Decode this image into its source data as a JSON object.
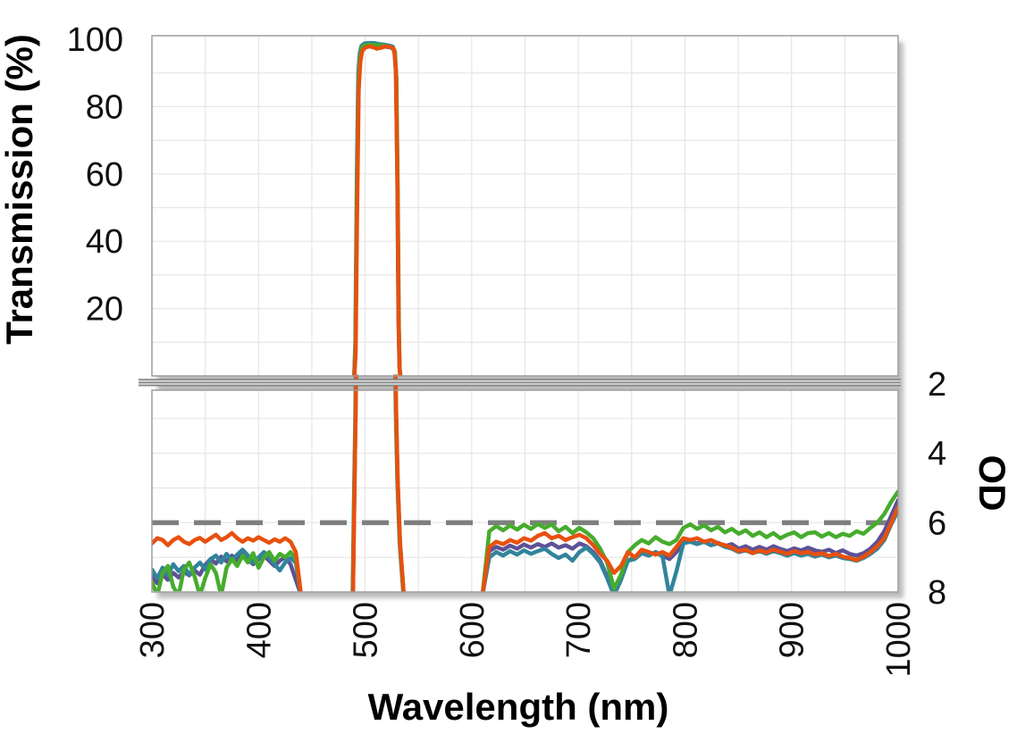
{
  "figure": {
    "background": "#ffffff",
    "grid_color": "#e6e6e6",
    "border_color": "#9d9d9d",
    "break_band": {
      "fill": "#dcdcdc",
      "line_color": "#858585"
    },
    "x_axis": {
      "title": "Wavelength (nm)",
      "min": 300,
      "max": 1000,
      "tick_values": [
        300,
        400,
        500,
        600,
        700,
        800,
        900,
        1000
      ],
      "tick_labels": [
        "300",
        "400",
        "500",
        "600",
        "700",
        "800",
        "900",
        "1000"
      ],
      "grid_step_nm": 50
    },
    "y_left_axis": {
      "title": "Transmission (%)",
      "min": 0,
      "max": 100,
      "tick_values": [
        100,
        80,
        60,
        40,
        20
      ],
      "tick_labels": [
        "100",
        "80",
        "60",
        "40",
        "20"
      ],
      "grid_step": 10
    },
    "y_right_axis": {
      "title": "OD",
      "min": 2,
      "max": 8,
      "inverted": true,
      "tick_values": [
        2,
        4,
        6,
        8
      ],
      "tick_labels": [
        "2",
        "4",
        "6",
        "8"
      ],
      "grid_step": 1
    },
    "reference_line": {
      "od": 6,
      "style": "dashed",
      "color": "#7f7f7f"
    }
  },
  "chart_data": {
    "type": "line",
    "title": "",
    "description": "Bandpass optical filter spectra for four samples: top panel transmission (%) with ~98% passband at ~493-532 nm; bottom panel blocking optical density (OD 2-8, inverted) with OD ~6-8 outside the passband and a dashed OD 6 reference line.",
    "x_unit": "nm",
    "x_range": [
      300,
      1000
    ],
    "transmission_range": [
      0,
      100
    ],
    "od_range": [
      2,
      8
    ],
    "grid": true,
    "legend": "none",
    "series": [
      {
        "id": "purple",
        "name": "Filter trace (purple)",
        "color": "#5E5196",
        "transmission_peak": [
          [
            489.8,
            0
          ],
          [
            490.9,
            8
          ],
          [
            492.3,
            52
          ],
          [
            493.8,
            86
          ],
          [
            495.3,
            94.5
          ],
          [
            496.9,
            97.2
          ],
          [
            499.4,
            98
          ],
          [
            503.5,
            98.2
          ],
          [
            508.5,
            98.1
          ],
          [
            513.5,
            98
          ],
          [
            518.5,
            97.8
          ],
          [
            523.5,
            97.6
          ],
          [
            526.2,
            97.2
          ],
          [
            527.8,
            96
          ],
          [
            529.2,
            89
          ],
          [
            530.4,
            57
          ],
          [
            531.5,
            16
          ],
          [
            532.3,
            2.5
          ],
          [
            533,
            0
          ]
        ],
        "od_segments": [
          {
            "x0": 300,
            "dx": 5,
            "od": [
              7.55,
              7.75,
              7.5,
              7.65,
              7.45,
              7.58,
              7.42,
              7.52,
              7.38,
              7.5,
              7.22,
              7.05,
              7.18,
              6.98,
              7.12,
              6.95,
              7.08,
              6.92,
              7.05,
              7.2,
              7.05,
              6.95,
              7.1,
              7.25,
              7.1,
              7.0,
              7.2,
              7.65,
              8.1
            ]
          },
          {
            "points": [
              [
                488.5,
                8.15
              ],
              [
                489.7,
                5.6
              ],
              [
                490.9,
                3.2
              ],
              [
                491.7,
                1.3
              ]
            ]
          },
          {
            "points": [
              [
                528.2,
                1.3
              ],
              [
                529.2,
                3.0
              ],
              [
                530.5,
                4.8
              ],
              [
                532.7,
                6.6
              ],
              [
                536.4,
                8.15
              ]
            ]
          },
          {
            "x0": 610,
            "dx": 6.5,
            "od": [
              8.1,
              6.82,
              6.7,
              6.78,
              6.66,
              6.75,
              6.63,
              6.72,
              6.62,
              6.7,
              6.6,
              6.72,
              6.65,
              6.75,
              6.6,
              6.68,
              6.85,
              7.1,
              7.55,
              8.0,
              7.55,
              7.1,
              7.0,
              6.88,
              6.95,
              6.85,
              6.95,
              7.05,
              6.85,
              6.58,
              6.55,
              6.6,
              6.55,
              6.65,
              6.58,
              6.68,
              6.62,
              6.75,
              6.68,
              6.78,
              6.7,
              6.78,
              6.68,
              6.76,
              6.82,
              6.74,
              6.8,
              6.72,
              6.8,
              6.84,
              6.78,
              6.88,
              6.8,
              6.9,
              6.95,
              6.88,
              6.75,
              6.55,
              6.25,
              5.8,
              5.35
            ]
          }
        ]
      },
      {
        "id": "teal",
        "name": "Filter trace (teal)",
        "color": "#31849B",
        "transmission_peak": [
          [
            489.7,
            0
          ],
          [
            490.8,
            10
          ],
          [
            492.2,
            60
          ],
          [
            493.6,
            90
          ],
          [
            495,
            96
          ],
          [
            496.5,
            98
          ],
          [
            499,
            98.7
          ],
          [
            503,
            98.9
          ],
          [
            508,
            98.9
          ],
          [
            513,
            98.6
          ],
          [
            518,
            98.4
          ],
          [
            523,
            98.1
          ],
          [
            526,
            97.8
          ],
          [
            527.6,
            96.5
          ],
          [
            528.9,
            90
          ],
          [
            530.1,
            60
          ],
          [
            531.2,
            18
          ],
          [
            532.1,
            3
          ],
          [
            532.9,
            0
          ]
        ],
        "od_segments": [
          {
            "x0": 300,
            "dx": 5,
            "od": [
              7.35,
              7.6,
              7.3,
              7.5,
              7.2,
              7.4,
              7.25,
              7.5,
              7.3,
              7.15,
              7.35,
              7.05,
              6.95,
              7.15,
              6.9,
              7.1,
              6.92,
              6.78,
              6.95,
              7.15,
              7.0,
              6.85,
              7.0,
              7.2,
              7.38,
              7.15,
              7.02,
              7.15,
              8.1
            ]
          },
          {
            "points": [
              [
                488.2,
                8.15
              ],
              [
                489.4,
                5.6
              ],
              [
                490.6,
                3.2
              ],
              [
                491.4,
                1.3
              ]
            ]
          },
          {
            "points": [
              [
                527.9,
                1.3
              ],
              [
                528.9,
                3.0
              ],
              [
                530.2,
                4.8
              ],
              [
                532.4,
                6.6
              ],
              [
                536.1,
                8.15
              ]
            ]
          },
          {
            "x0": 610,
            "dx": 6.5,
            "od": [
              8.1,
              7.0,
              6.85,
              6.95,
              6.82,
              6.92,
              6.8,
              6.9,
              6.82,
              6.75,
              6.9,
              7.02,
              6.92,
              7.1,
              6.85,
              6.72,
              6.9,
              7.15,
              7.6,
              8.1,
              7.65,
              7.1,
              7.05,
              6.88,
              6.95,
              6.85,
              6.98,
              8.1,
              7.4,
              6.6,
              6.55,
              6.62,
              6.55,
              6.65,
              6.6,
              6.7,
              6.75,
              6.85,
              6.8,
              6.88,
              6.82,
              6.9,
              6.82,
              6.88,
              6.95,
              6.88,
              6.95,
              6.9,
              6.98,
              6.92,
              7.0,
              6.95,
              7.02,
              7.05,
              7.1,
              7.02,
              6.9,
              6.75,
              6.5,
              6.05,
              5.65
            ]
          }
        ]
      },
      {
        "id": "green",
        "name": "Filter trace (green)",
        "color": "#46AC2D",
        "transmission_peak": [
          [
            489.9,
            0
          ],
          [
            491,
            9
          ],
          [
            492.4,
            55
          ],
          [
            493.9,
            88
          ],
          [
            495.4,
            95
          ],
          [
            497,
            97.6
          ],
          [
            499.5,
            98.2
          ],
          [
            504,
            98.4
          ],
          [
            509,
            98.3
          ],
          [
            514,
            98.2
          ],
          [
            519,
            98
          ],
          [
            524,
            97.7
          ],
          [
            526.5,
            97.3
          ],
          [
            528,
            96.2
          ],
          [
            529.4,
            88
          ],
          [
            530.6,
            55
          ],
          [
            531.7,
            14
          ],
          [
            532.5,
            2
          ],
          [
            533.2,
            0
          ]
        ],
        "od_segments": [
          {
            "x0": 300,
            "dx": 5,
            "od": [
              7.7,
              8.1,
              7.45,
              7.25,
              7.85,
              8.1,
              7.35,
              7.15,
              7.55,
              8.1,
              7.6,
              7.2,
              7.45,
              8.1,
              7.3,
              7.05,
              7.25,
              6.95,
              7.15,
              6.88,
              7.3,
              7.0,
              6.85,
              7.1,
              6.9,
              7.0,
              6.85,
              7.05,
              8.1
            ]
          },
          {
            "points": [
              [
                488.4,
                8.15
              ],
              [
                489.6,
                5.6
              ],
              [
                490.8,
                3.2
              ],
              [
                491.6,
                1.3
              ]
            ]
          },
          {
            "points": [
              [
                528.1,
                1.3
              ],
              [
                529.1,
                3.0
              ],
              [
                530.4,
                4.8
              ],
              [
                532.6,
                6.6
              ],
              [
                536.3,
                8.15
              ]
            ]
          },
          {
            "x0": 610,
            "dx": 6.5,
            "od": [
              8.1,
              6.25,
              6.1,
              6.22,
              6.08,
              6.2,
              6.06,
              6.18,
              6.04,
              6.15,
              6.05,
              6.25,
              6.12,
              6.3,
              6.15,
              6.28,
              6.45,
              6.75,
              7.15,
              7.9,
              7.5,
              6.85,
              6.65,
              6.5,
              6.6,
              6.42,
              6.55,
              6.62,
              6.5,
              6.15,
              6.05,
              6.18,
              6.08,
              6.22,
              6.12,
              6.28,
              6.18,
              6.32,
              6.22,
              6.38,
              6.28,
              6.42,
              6.3,
              6.45,
              6.35,
              6.28,
              6.42,
              6.3,
              6.28,
              6.4,
              6.3,
              6.42,
              6.32,
              6.38,
              6.25,
              6.32,
              6.15,
              6.0,
              5.75,
              5.4,
              5.1
            ]
          }
        ]
      },
      {
        "id": "orange",
        "name": "Filter trace (orange)",
        "color": "#E8500E",
        "transmission_peak": [
          [
            490,
            0
          ],
          [
            491.1,
            7
          ],
          [
            492.5,
            48
          ],
          [
            494,
            85
          ],
          [
            495.6,
            93.5
          ],
          [
            497.3,
            96.6
          ],
          [
            500,
            97.5
          ],
          [
            504,
            97.9
          ],
          [
            508,
            97.6
          ],
          [
            511,
            97.2
          ],
          [
            514,
            97.4
          ],
          [
            518,
            97.8
          ],
          [
            522,
            97.8
          ],
          [
            525.5,
            97.5
          ],
          [
            527.3,
            96.8
          ],
          [
            528.8,
            91
          ],
          [
            530.3,
            58
          ],
          [
            531.5,
            15
          ],
          [
            532.4,
            2
          ],
          [
            533.1,
            0
          ]
        ],
        "od_segments": [
          {
            "x0": 300,
            "dx": 5,
            "od": [
              6.6,
              6.45,
              6.5,
              6.65,
              6.5,
              6.42,
              6.55,
              6.62,
              6.5,
              6.44,
              6.55,
              6.45,
              6.35,
              6.5,
              6.42,
              6.3,
              6.45,
              6.55,
              6.45,
              6.52,
              6.42,
              6.5,
              6.58,
              6.48,
              6.55,
              6.45,
              6.55,
              6.85,
              8.1
            ]
          },
          {
            "points": [
              [
                488.6,
                8.15
              ],
              [
                489.8,
                5.6
              ],
              [
                491.0,
                3.2
              ],
              [
                491.8,
                1.3
              ]
            ]
          },
          {
            "points": [
              [
                528.3,
                1.3
              ],
              [
                529.3,
                3.0
              ],
              [
                530.6,
                4.8
              ],
              [
                532.8,
                6.6
              ],
              [
                536.5,
                8.15
              ]
            ]
          },
          {
            "x0": 610,
            "dx": 6.5,
            "od": [
              8.1,
              6.7,
              6.55,
              6.62,
              6.5,
              6.58,
              6.45,
              6.52,
              6.38,
              6.3,
              6.45,
              6.38,
              6.5,
              6.42,
              6.35,
              6.45,
              6.65,
              6.9,
              7.1,
              7.45,
              7.25,
              6.85,
              7.0,
              6.78,
              6.85,
              6.92,
              6.85,
              6.95,
              6.7,
              6.45,
              6.5,
              6.45,
              6.55,
              6.5,
              6.6,
              6.65,
              6.72,
              6.82,
              6.78,
              6.88,
              6.8,
              6.86,
              6.78,
              6.84,
              6.9,
              6.82,
              6.88,
              6.84,
              6.92,
              6.88,
              6.96,
              6.9,
              6.98,
              7.02,
              7.08,
              6.98,
              6.85,
              6.68,
              6.45,
              6.0,
              5.55
            ]
          }
        ]
      }
    ]
  }
}
